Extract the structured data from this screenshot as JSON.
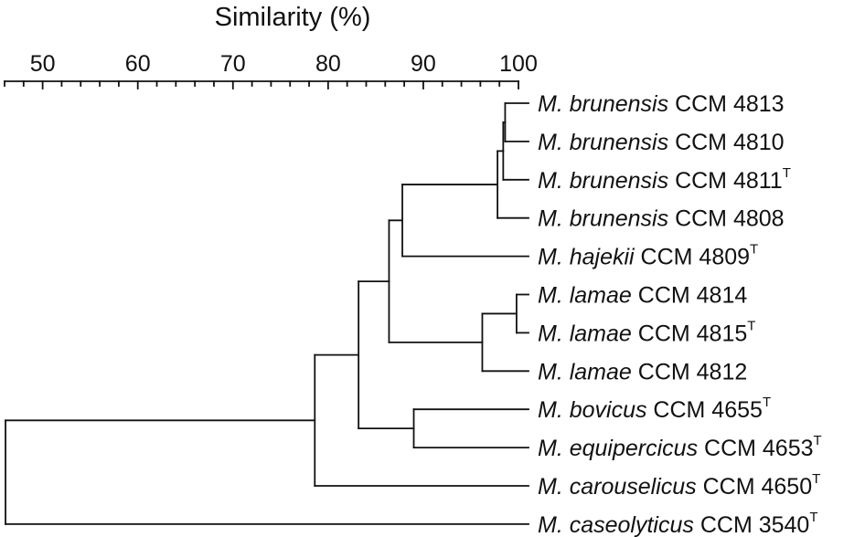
{
  "title": "Similarity (%)",
  "axis": {
    "min": 46,
    "max": 100,
    "ticks": [
      "50",
      "60",
      "70",
      "80",
      "90",
      "100"
    ],
    "minor_step": 2
  },
  "leaves": [
    {
      "species": "M. brunensis",
      "strain": " CCM 4813",
      "sup": ""
    },
    {
      "species": "M. brunensis",
      "strain": " CCM 4810",
      "sup": ""
    },
    {
      "species": "M. brunensis",
      "strain": " CCM 4811",
      "sup": "T"
    },
    {
      "species": "M. brunensis",
      "strain": " CCM 4808",
      "sup": ""
    },
    {
      "species": "M. hajekii",
      "strain": " CCM 4809",
      "sup": "T"
    },
    {
      "species": "M. lamae",
      "strain": " CCM 4814",
      "sup": ""
    },
    {
      "species": "M. lamae",
      "strain": " CCM 4815",
      "sup": "T"
    },
    {
      "species": "M. lamae",
      "strain": " CCM 4812",
      "sup": ""
    },
    {
      "species": "M. bovicus",
      "strain": " CCM 4655",
      "sup": "T"
    },
    {
      "species": "M. equipercicus",
      "strain": " CCM 4653",
      "sup": "T"
    },
    {
      "species": "M. carouselicus",
      "strain": " CCM 4650",
      "sup": "T"
    },
    {
      "species": "M. caseolyticus",
      "strain": " CCM 3540",
      "sup": "T"
    }
  ],
  "clusters": [
    {
      "members": [
        0,
        1
      ],
      "similarity": 98.6
    },
    {
      "members": [
        0,
        1,
        2
      ],
      "similarity": 98.4
    },
    {
      "members": [
        0,
        1,
        2,
        3
      ],
      "similarity": 97.8
    },
    {
      "members": [
        0,
        1,
        2,
        3,
        4
      ],
      "similarity": 87.8
    },
    {
      "members": [
        5,
        6
      ],
      "similarity": 99.8
    },
    {
      "members": [
        5,
        6,
        7
      ],
      "similarity": 96.2
    },
    {
      "members": [
        0,
        1,
        2,
        3,
        4,
        5,
        6,
        7
      ],
      "similarity": 86.4
    },
    {
      "members": [
        8,
        9
      ],
      "similarity": 89.0
    },
    {
      "members": [
        0,
        1,
        2,
        3,
        4,
        5,
        6,
        7,
        8,
        9
      ],
      "similarity": 83.2
    },
    {
      "members": [
        0,
        1,
        2,
        3,
        4,
        5,
        6,
        7,
        8,
        9,
        10
      ],
      "similarity": 78.6
    },
    {
      "members": [
        0,
        1,
        2,
        3,
        4,
        5,
        6,
        7,
        8,
        9,
        10,
        11
      ],
      "similarity": 46.1
    }
  ]
}
